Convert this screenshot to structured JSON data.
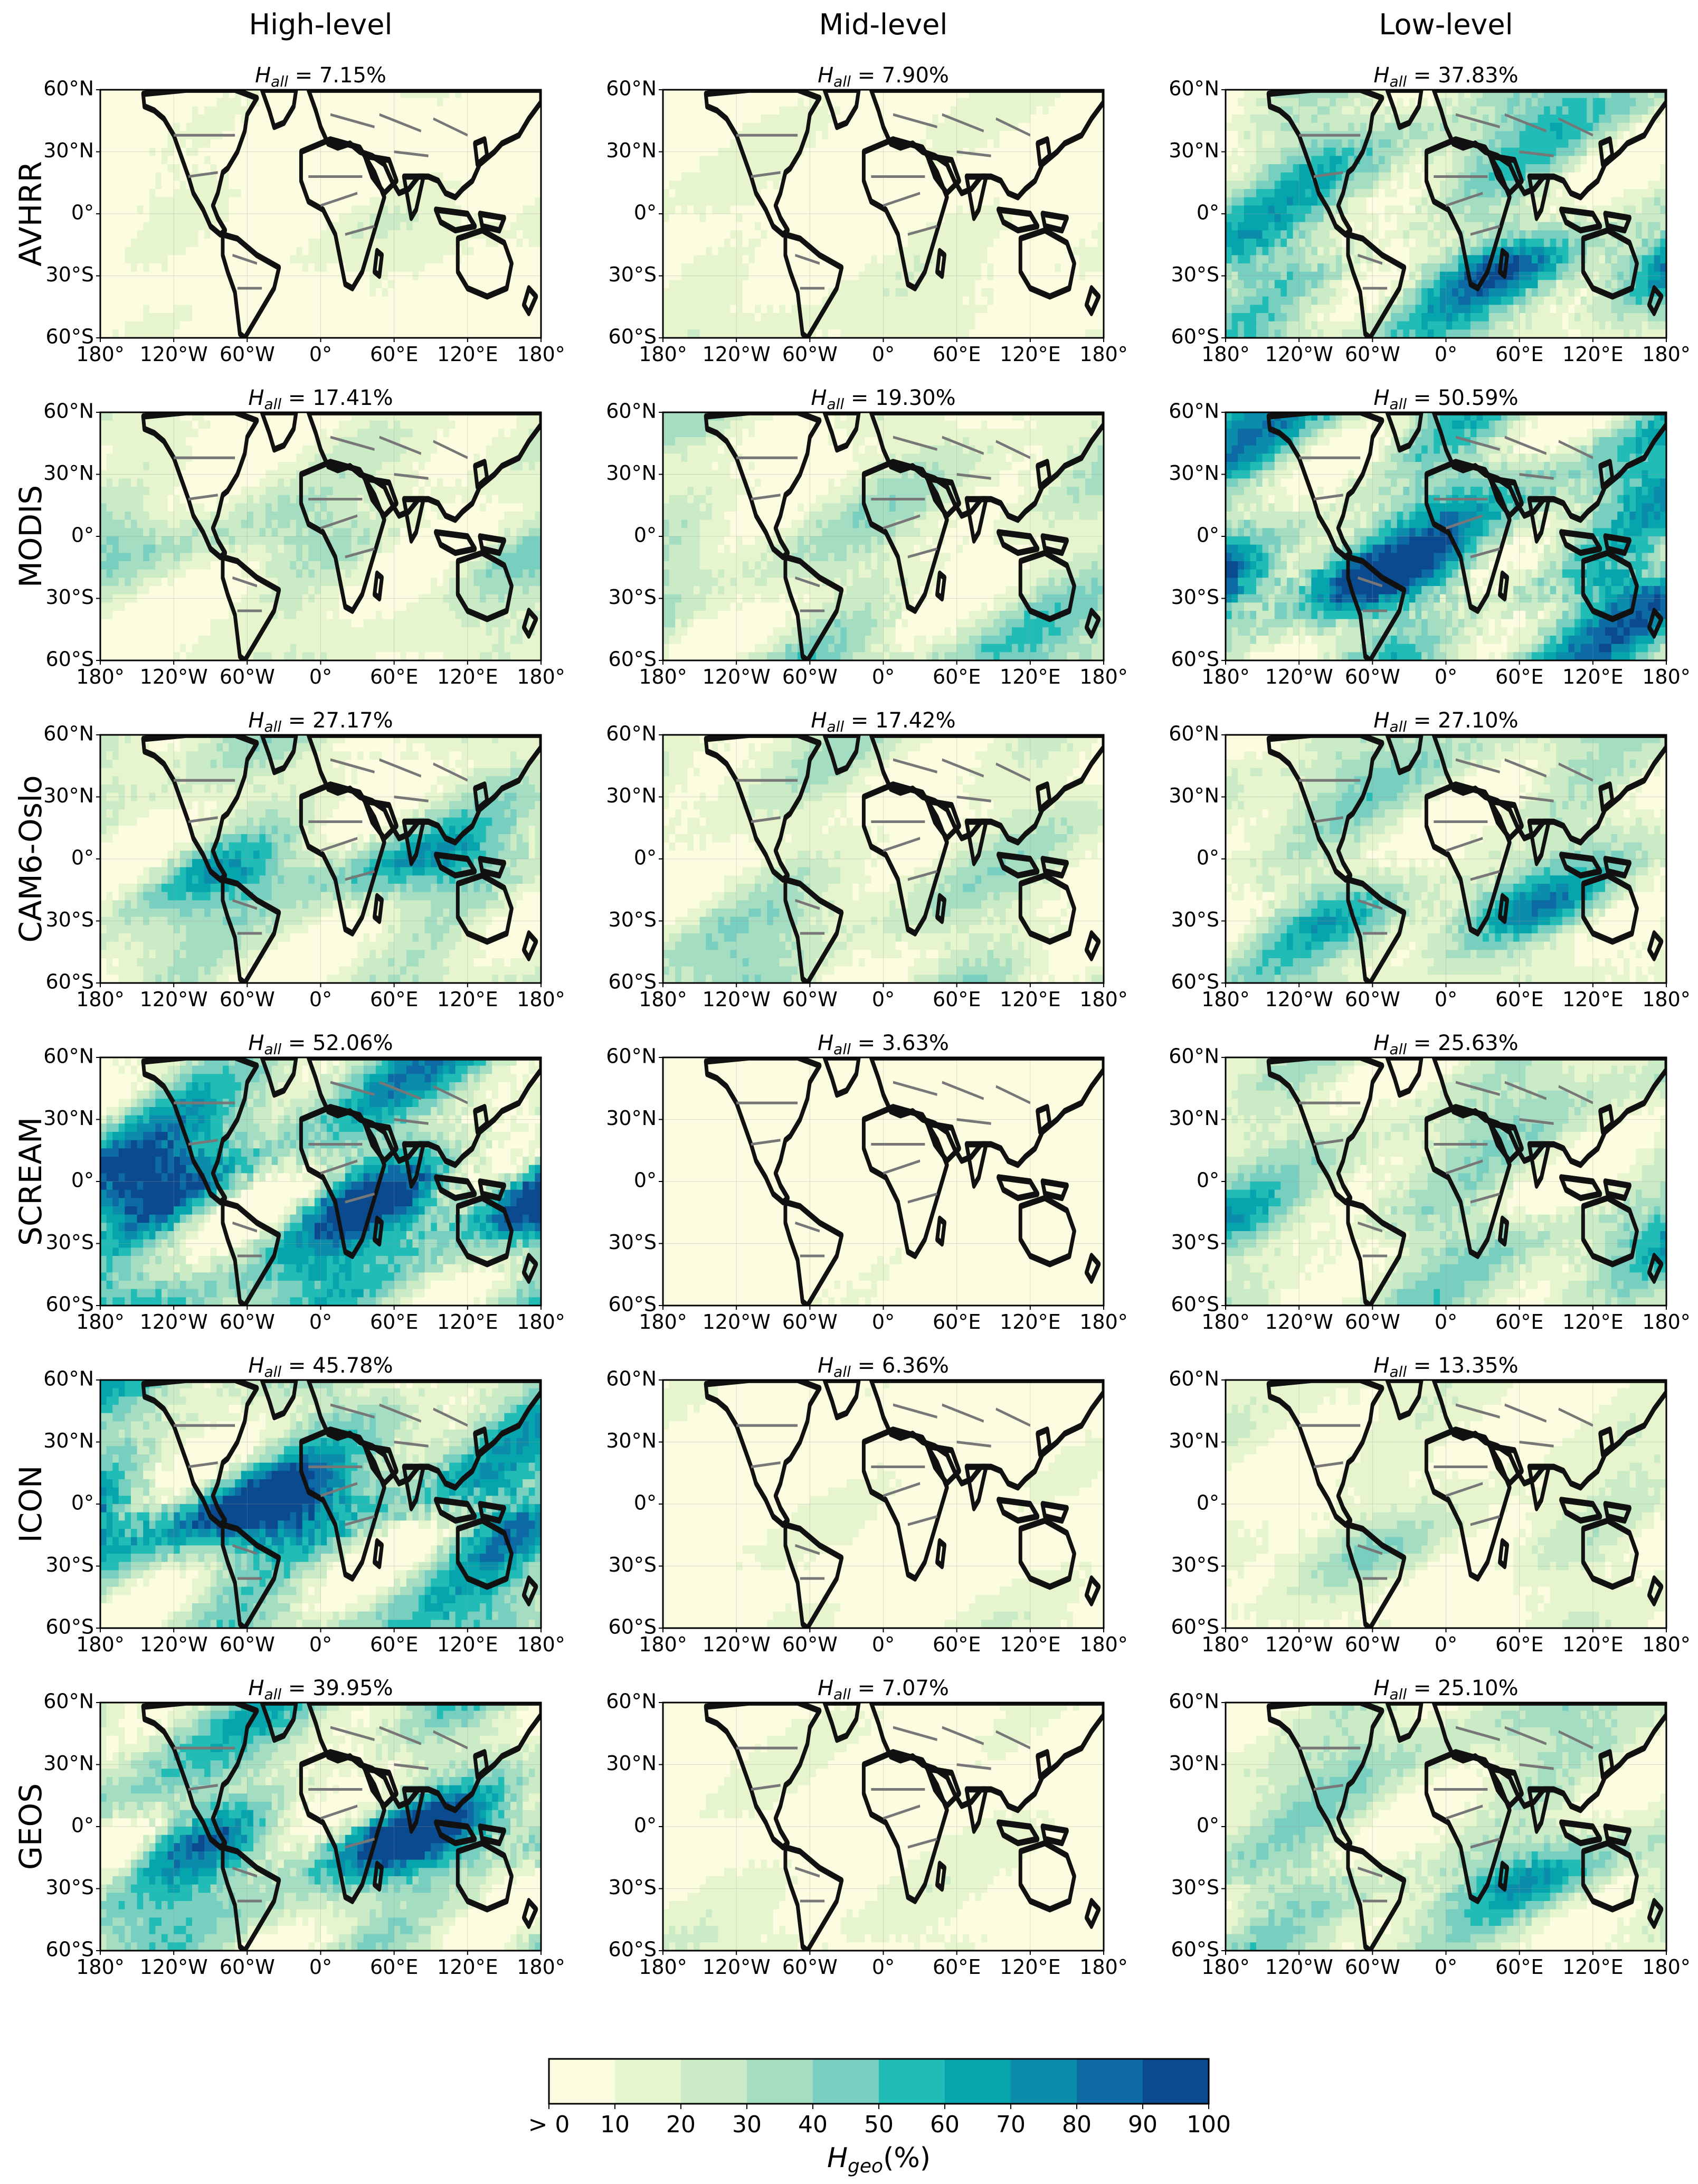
{
  "columns": [
    "High-level",
    "Mid-level",
    "Low-level"
  ],
  "rows": [
    "AVHRR",
    "MODIS",
    "CAM6-Oslo",
    "SCREAM",
    "ICON",
    "GEOS"
  ],
  "panel_title_symbol": "H",
  "panel_title_subscript": "all",
  "panels": [
    [
      {
        "value": "7.15%",
        "intensity": 0.12
      },
      {
        "value": "7.90%",
        "intensity": 0.13
      },
      {
        "value": "37.83%",
        "intensity": 0.55
      }
    ],
    [
      {
        "value": "17.41%",
        "intensity": 0.28
      },
      {
        "value": "19.30%",
        "intensity": 0.3
      },
      {
        "value": "50.59%",
        "intensity": 0.72
      }
    ],
    [
      {
        "value": "27.17%",
        "intensity": 0.42
      },
      {
        "value": "17.42%",
        "intensity": 0.28
      },
      {
        "value": "27.10%",
        "intensity": 0.42
      }
    ],
    [
      {
        "value": "52.06%",
        "intensity": 0.78
      },
      {
        "value": "3.63%",
        "intensity": 0.06
      },
      {
        "value": "25.63%",
        "intensity": 0.4
      }
    ],
    [
      {
        "value": "45.78%",
        "intensity": 0.7
      },
      {
        "value": "6.36%",
        "intensity": 0.1
      },
      {
        "value": "13.35%",
        "intensity": 0.22
      }
    ],
    [
      {
        "value": "39.95%",
        "intensity": 0.62
      },
      {
        "value": "7.07%",
        "intensity": 0.12
      },
      {
        "value": "25.10%",
        "intensity": 0.4
      }
    ]
  ],
  "y_ticks": [
    "60°N",
    "30°N",
    "0°",
    "30°S",
    "60°S"
  ],
  "x_ticks": [
    "180°",
    "120°W",
    "60°W",
    "0°",
    "60°E",
    "120°E",
    "180°"
  ],
  "colorbar": {
    "tick_labels": [
      "> 0",
      "10",
      "20",
      "30",
      "40",
      "50",
      "60",
      "70",
      "80",
      "90",
      "100"
    ],
    "colors": [
      "#fcfde0",
      "#e7f5cf",
      "#cbebc6",
      "#a4ddc1",
      "#78cfc0",
      "#20bcb5",
      "#06a5ad",
      "#0b8cab",
      "#0d6aa4",
      "#0b4a8e"
    ],
    "label_symbol": "H",
    "label_subscript": "geo",
    "label_unit": "(%)"
  }
}
